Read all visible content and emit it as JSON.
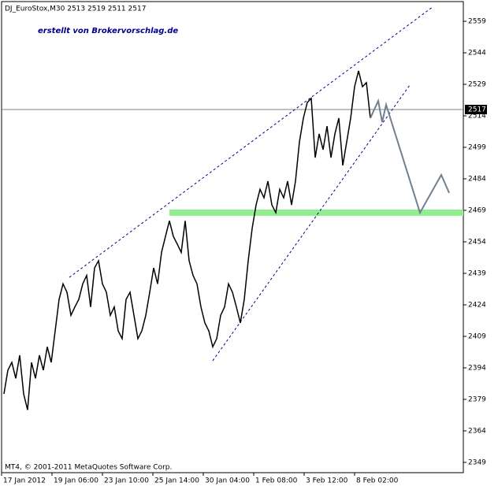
{
  "chart_data": {
    "type": "line",
    "title": "DJ_EuroStox,M30  2513 2519 2511 2517",
    "annotation": "erstellt von Brokervorschlag.de",
    "footer": "MT4, © 2001-2011 MetaQuotes Software Corp.",
    "xlim": [
      0,
      293
    ],
    "ylim": [
      2344.1,
      2568.4
    ],
    "yticks": [
      2559,
      2544,
      2529,
      2514,
      2499,
      2484,
      2469,
      2454,
      2439,
      2424,
      2409,
      2394,
      2379,
      2364,
      2349
    ],
    "xticks": [
      {
        "value": 0,
        "label": "17 Jan 2012"
      },
      {
        "value": 32,
        "label": "19 Jan 06:00"
      },
      {
        "value": 64,
        "label": "23 Jan 10:00"
      },
      {
        "value": 96,
        "label": "25 Jan 14:00"
      },
      {
        "value": 128,
        "label": "30 Jan 04:00"
      },
      {
        "value": 160,
        "label": "1 Feb 08:00"
      },
      {
        "value": 192,
        "label": "3 Feb 12:00"
      },
      {
        "value": 224,
        "label": "8 Feb 02:00"
      }
    ],
    "series": [
      {
        "color": "#000000",
        "x": [
          1.5,
          4,
          6.5,
          9,
          11.5,
          14,
          16.5,
          19,
          21.5,
          24,
          26.5,
          29,
          31.5,
          34,
          36.5,
          39,
          41.5,
          44,
          46.5,
          49,
          51.5,
          54,
          56.5,
          59,
          61.5,
          64,
          66.5,
          69,
          71.5,
          74,
          76.5,
          79,
          81.5,
          84,
          86.5,
          89,
          91.5,
          94,
          96.5,
          99,
          101.5,
          104,
          106.5,
          109,
          111.5,
          114,
          116.5,
          119,
          121.5,
          124,
          126.5,
          129,
          131.5,
          134,
          136.5,
          139,
          141.5,
          144,
          146.5,
          149,
          151.5,
          154,
          156.5,
          159,
          161.5,
          164,
          166.5,
          169,
          171.5,
          174,
          176.5,
          179,
          181.5,
          184,
          186.5,
          189,
          191.5,
          194,
          196.5,
          199,
          201.5,
          204,
          206.5,
          209,
          211.5,
          214,
          216.5,
          219,
          221.5,
          224,
          226.5,
          229,
          231.5,
          234
        ],
        "values": [
          2381.6,
          2392.9,
          2396.6,
          2389,
          2400,
          2381.6,
          2374,
          2396.6,
          2389,
          2400,
          2392.9,
          2404,
          2396.6,
          2411.6,
          2426.6,
          2434,
          2430,
          2419,
          2423,
          2426.6,
          2434,
          2438,
          2423,
          2441.6,
          2445,
          2434,
          2430,
          2419,
          2423,
          2411.6,
          2407.9,
          2426.6,
          2430,
          2419,
          2407.9,
          2411.6,
          2419,
          2430,
          2441.6,
          2434,
          2449,
          2456.6,
          2464,
          2456.6,
          2452.9,
          2449,
          2464,
          2445,
          2438,
          2434,
          2423,
          2415.4,
          2411.6,
          2404,
          2407.9,
          2419,
          2423,
          2434,
          2430,
          2423,
          2415.4,
          2426.6,
          2445,
          2460.4,
          2471.6,
          2479,
          2475,
          2482.9,
          2471.6,
          2467.9,
          2479,
          2475,
          2482.9,
          2471.6,
          2482.9,
          2501.6,
          2512.9,
          2520.4,
          2522.3,
          2494.1,
          2505.4,
          2497.9,
          2509.1,
          2494.1,
          2505.4,
          2512.9,
          2490.4,
          2501.6,
          2512.9,
          2527.9,
          2535.4,
          2527.9,
          2529.8,
          2512.9
        ]
      },
      {
        "color": "#708090",
        "x": [
          234,
          239,
          241.5,
          244,
          265.5,
          279,
          284
        ],
        "values": [
          2512.9,
          2521.1,
          2511,
          2519.3,
          2467.9,
          2485.9,
          2477.3
        ]
      }
    ],
    "channel_lines": [
      {
        "color": "#00008b",
        "x": [
          43,
          274
        ],
        "values": [
          2437.1,
          2566.1
        ]
      },
      {
        "color": "#00008b",
        "x": [
          134,
          259
        ],
        "values": [
          2397.4,
          2528.6
        ]
      }
    ],
    "band": {
      "color": "#90ee90",
      "x": [
        106.5,
        293
      ],
      "value": 2467.9
    },
    "price_line": {
      "color": "#808080",
      "value": 2517
    }
  }
}
